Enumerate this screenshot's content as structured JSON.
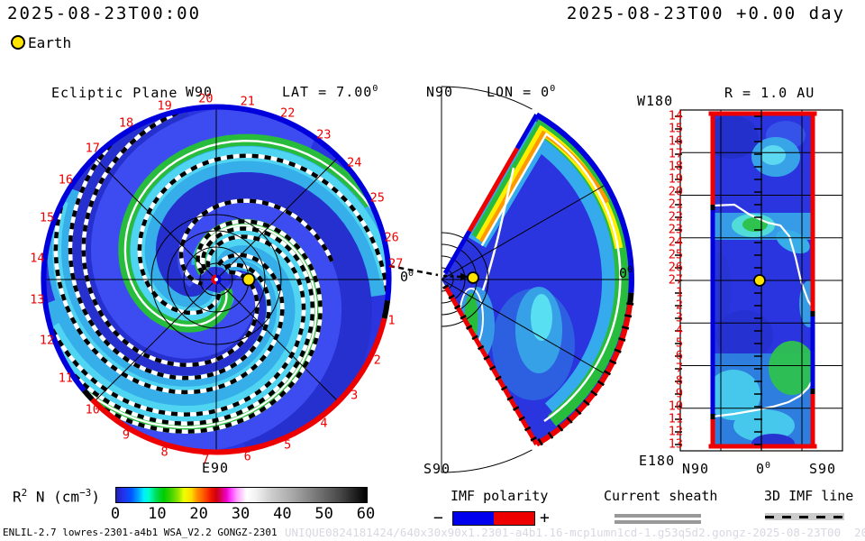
{
  "header": {
    "timestamp_left": "2025-08-23T00:00",
    "timestamp_right": "2025-08-23T00 +0.00 day",
    "earth_label": "Earth"
  },
  "shared": {
    "zero": "0",
    "zero_sup": "0"
  },
  "panels": {
    "ecliptic": {
      "title": "Ecliptic Plane",
      "top_label": "W90",
      "bottom_label": "E90",
      "lat_label": "LAT = 7.00",
      "lat_sup": "0",
      "day_labels": [
        1,
        2,
        3,
        4,
        5,
        6,
        7,
        8,
        9,
        10,
        11,
        12,
        13,
        14,
        15,
        16,
        17,
        18,
        19,
        20,
        21,
        22,
        23,
        24,
        25,
        26,
        27
      ]
    },
    "meridional": {
      "north_label": "N90",
      "south_label": "S90",
      "lon_label": "LON = 0",
      "lon_sup": "0"
    },
    "radial": {
      "title": "R = 1.0 AU",
      "corner_top_left": "W180",
      "corner_bottom_left": "E180",
      "x_label_left": "N90",
      "x_label_right": "S90",
      "day_labels": [
        14,
        15,
        16,
        17,
        18,
        19,
        20,
        21,
        22,
        23,
        24,
        25,
        26,
        27,
        1,
        2,
        3,
        4,
        5,
        6,
        7,
        8,
        9,
        10,
        11,
        12,
        13
      ]
    }
  },
  "colorbar": {
    "label": "R² N (cm⁻³)",
    "label_base": "R",
    "label_base_sup": "2",
    "label_mid": " N (cm",
    "label_exp_sup": "−3",
    "label_close": ")",
    "range": [
      0,
      60
    ],
    "ticks": [
      0,
      10,
      20,
      30,
      40,
      50,
      60
    ]
  },
  "legends": {
    "imf": {
      "title": "IMF polarity",
      "minus": "−",
      "plus": "+"
    },
    "sheath": {
      "title": "Current sheath"
    },
    "imf_line": {
      "title": "3D IMF line"
    }
  },
  "footer": {
    "model_info": "ENLIL-2.7 lowres-2301-a4b1 WSA_V2.2 GONGZ-2301",
    "watermark": "UNIQUE0824181424/640x30x90x1.2301-a4b1.16-mcp1umn1cd-1.g53q5d2.gongz-2025-08-23T00  2025-08-24"
  },
  "colors": {
    "polarity_negative": "#0000dd",
    "polarity_positive": "#ee0000",
    "earth": "#ffe400",
    "day_label_red": "#ee0000",
    "current_sheet": "#ffffff",
    "high_density_band": "#28bc3c",
    "field_background": "#2a35e0",
    "sheath_gray": "#999999",
    "watermark_gray": "#d8d8e2"
  },
  "chart_data": [
    {
      "type": "heatmap",
      "name": "ecliptic-plane",
      "title": "Ecliptic Plane",
      "projection": "polar-disk",
      "quantity": "R^2 N (cm^-3)",
      "color_scale_range": [
        0,
        60
      ],
      "latitude_deg": 7.0,
      "compass_labels": {
        "top": "W90",
        "bottom": "E90",
        "right": "0deg"
      },
      "day_ring_labels": [
        1,
        2,
        3,
        4,
        5,
        6,
        7,
        8,
        9,
        10,
        11,
        12,
        13,
        14,
        15,
        16,
        17,
        18,
        19,
        20,
        21,
        22,
        23,
        24,
        25,
        26,
        27
      ],
      "earth_position": {
        "longitude_deg": 0,
        "radius_au": 1.0,
        "day": 27
      },
      "rim_imf_polarity": [
        {
          "polarity": "negative",
          "color": "#0000dd",
          "extent_days": "from ~day 1 through W90 (top) to ~day 10.5"
        },
        {
          "polarity": "positive",
          "color": "#ee0000",
          "extent_days": "from ~day 10.5 through E90 (bottom) to ~day 1"
        }
      ],
      "overlays": [
        "two corotating high-density spiral bands (cyan/green, ~10-20 cm-3)",
        "heliospheric current sheet as white spiral lines",
        "3D IMF field lines as black-white checkered spirals",
        "dashed 3D IMF line annotation exiting at day 27 toward meridional panel"
      ]
    },
    {
      "type": "heatmap",
      "name": "meridional-plane",
      "title": "LON = 0deg",
      "pole_labels": {
        "north": "N90",
        "south": "S90"
      },
      "right_axis_label": "0deg",
      "latitude_extent_deg": [
        -60,
        60
      ],
      "earth_position": {
        "latitude_deg": 0,
        "radius_au": 1.0
      },
      "features": [
        "high-density band (green/yellow/orange, ~15-25 cm-3) along north edge and outer boundary",
        "white current-sheet line parallel to north edge and outer arc",
        "boundary IMF polarity: blue = negative, red = positive",
        "cyan density plumes near equator at mid radius"
      ]
    },
    {
      "type": "heatmap",
      "name": "constant-radius-map",
      "title": "R = 1.0 AU",
      "x_axis_labels": [
        "N90",
        "0deg",
        "S90"
      ],
      "corner_labels": {
        "top_left": "W180",
        "bottom_left": "E180"
      },
      "y_axis_day_labels": [
        14,
        15,
        16,
        17,
        18,
        19,
        20,
        21,
        22,
        23,
        24,
        25,
        26,
        27,
        1,
        2,
        3,
        4,
        5,
        6,
        7,
        8,
        9,
        10,
        11,
        12,
        13
      ],
      "earth_position": {
        "latitude_deg": 0,
        "day": 27
      },
      "features": [
        "white current-sheet crossings near days 21-27 into 1-2 and days 9-12",
        "edge IMF polarity segments blue (negative) / red (positive)",
        "cyan-green high-density regions near days 22-23 (center) and days 8-13 (south)"
      ]
    }
  ]
}
